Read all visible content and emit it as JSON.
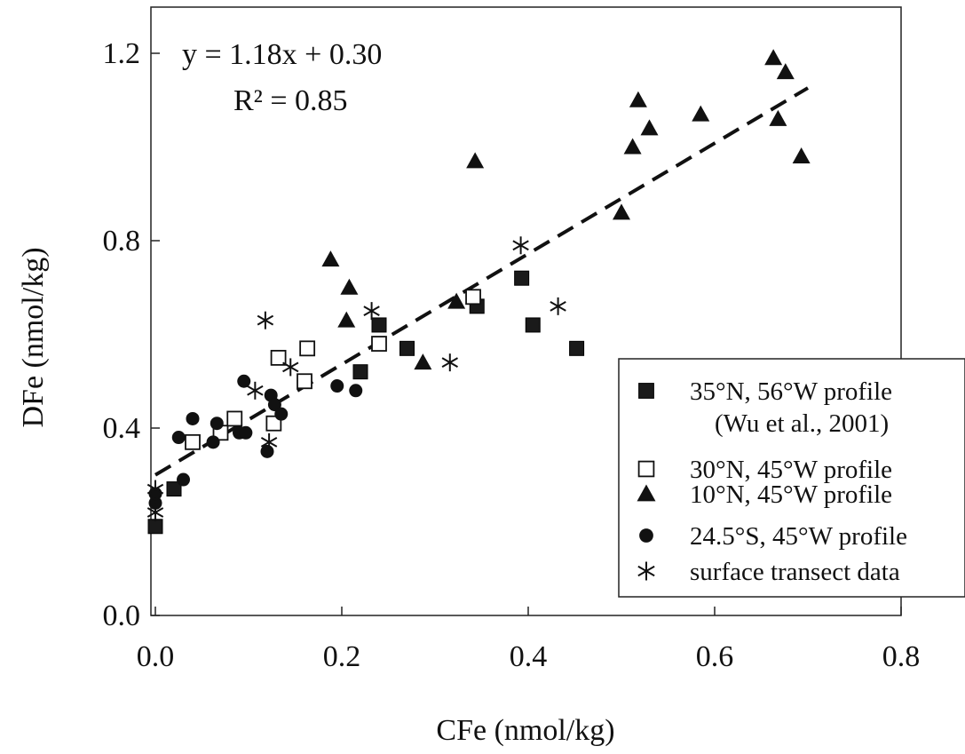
{
  "chart_data": {
    "type": "scatter",
    "title": "",
    "xlabel": "CFe (nmol/kg)",
    "ylabel": "DFe (nmol/kg)",
    "xlim": [
      0.0,
      0.8
    ],
    "ylim": [
      0.0,
      1.3
    ],
    "x_ticks": [
      "0.0",
      "0.2",
      "0.4",
      "0.6",
      "0.8"
    ],
    "y_ticks": [
      "0.0",
      "0.4",
      "0.8",
      "1.2"
    ],
    "grid": false,
    "legend_position": "bottom-right",
    "annotations": {
      "equation": "y = 1.18x + 0.30",
      "r_squared": "R² = 0.85"
    },
    "regression": {
      "slope": 1.18,
      "intercept": 0.3,
      "x_range": [
        0.0,
        0.7
      ],
      "style": "dashed"
    },
    "series": [
      {
        "name": "35°N, 56°W profile",
        "name_line2": "(Wu et al., 2001)",
        "marker": "filled-square",
        "points": [
          [
            0.0,
            0.19
          ],
          [
            0.02,
            0.27
          ],
          [
            0.22,
            0.52
          ],
          [
            0.24,
            0.62
          ],
          [
            0.27,
            0.57
          ],
          [
            0.345,
            0.66
          ],
          [
            0.393,
            0.72
          ],
          [
            0.405,
            0.62
          ],
          [
            0.452,
            0.57
          ]
        ]
      },
      {
        "name": "30°N, 45°W profile",
        "marker": "open-square",
        "points": [
          [
            0.04,
            0.37
          ],
          [
            0.07,
            0.39
          ],
          [
            0.085,
            0.42
          ],
          [
            0.127,
            0.41
          ],
          [
            0.132,
            0.55
          ],
          [
            0.16,
            0.5
          ],
          [
            0.163,
            0.57
          ],
          [
            0.24,
            0.58
          ],
          [
            0.341,
            0.68
          ]
        ]
      },
      {
        "name": "10°N, 45°W profile",
        "marker": "filled-triangle",
        "points": [
          [
            0.188,
            0.76
          ],
          [
            0.205,
            0.63
          ],
          [
            0.208,
            0.7
          ],
          [
            0.287,
            0.54
          ],
          [
            0.323,
            0.67
          ],
          [
            0.343,
            0.97
          ],
          [
            0.5,
            0.86
          ],
          [
            0.512,
            1.0
          ],
          [
            0.518,
            1.1
          ],
          [
            0.53,
            1.04
          ],
          [
            0.585,
            1.07
          ],
          [
            0.663,
            1.19
          ],
          [
            0.668,
            1.06
          ],
          [
            0.676,
            1.16
          ],
          [
            0.693,
            0.98
          ]
        ]
      },
      {
        "name": "24.5°S, 45°W profile",
        "marker": "filled-circle",
        "points": [
          [
            0.0,
            0.24
          ],
          [
            0.0,
            0.26
          ],
          [
            0.025,
            0.38
          ],
          [
            0.03,
            0.29
          ],
          [
            0.04,
            0.42
          ],
          [
            0.062,
            0.37
          ],
          [
            0.066,
            0.41
          ],
          [
            0.09,
            0.39
          ],
          [
            0.095,
            0.5
          ],
          [
            0.097,
            0.39
          ],
          [
            0.12,
            0.35
          ],
          [
            0.124,
            0.47
          ],
          [
            0.128,
            0.45
          ],
          [
            0.135,
            0.43
          ],
          [
            0.195,
            0.49
          ],
          [
            0.215,
            0.48
          ]
        ]
      },
      {
        "name": "surface transect data",
        "marker": "asterisk",
        "points": [
          [
            0.0,
            0.22
          ],
          [
            0.0,
            0.27
          ],
          [
            0.107,
            0.48
          ],
          [
            0.118,
            0.63
          ],
          [
            0.122,
            0.37
          ],
          [
            0.145,
            0.53
          ],
          [
            0.232,
            0.65
          ],
          [
            0.316,
            0.54
          ],
          [
            0.392,
            0.79
          ],
          [
            0.432,
            0.66
          ]
        ]
      }
    ]
  }
}
